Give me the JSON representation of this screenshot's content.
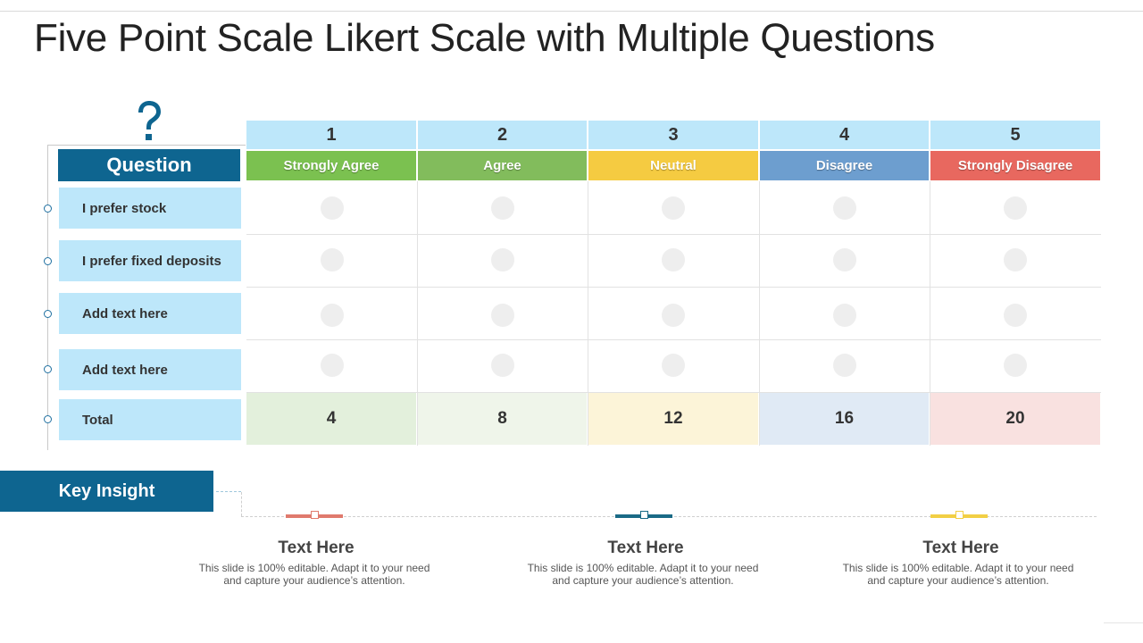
{
  "title": "Five Point Scale Likert Scale with Multiple Questions",
  "question_header": "Question",
  "questions": [
    "I prefer stock",
    "I prefer fixed deposits",
    "Add text here",
    "Add text here",
    "Total"
  ],
  "scale": [
    {
      "number": "1",
      "label": "Strongly Agree",
      "color": "#7bc150",
      "total": "4",
      "total_bg": "#e3f0dc"
    },
    {
      "number": "2",
      "label": "Agree",
      "color": "#82bc5c",
      "total": "8",
      "total_bg": "#eff5ea"
    },
    {
      "number": "3",
      "label": "Neutral",
      "color": "#f5cb41",
      "total": "12",
      "total_bg": "#fcf4d8"
    },
    {
      "number": "4",
      "label": "Disagree",
      "color": "#6d9ecf",
      "total": "16",
      "total_bg": "#e0eaf5"
    },
    {
      "number": "5",
      "label": "Strongly Disagree",
      "color": "#e8685f",
      "total": "20",
      "total_bg": "#f9e1e0"
    }
  ],
  "key_insight": "Key Insight",
  "insights": [
    {
      "title": "Text Here",
      "desc_line1": "This slide is 100% editable. Adapt it to your need",
      "desc_line2": "and capture your audience’s attention.",
      "color": "#e07a6d"
    },
    {
      "title": "Text Here",
      "desc_line1": "This slide is 100% editable. Adapt it to your need",
      "desc_line2": "and capture your audience’s attention.",
      "color": "#1a6a86"
    },
    {
      "title": "Text Here",
      "desc_line1": "This slide is 100% editable. Adapt it to your need",
      "desc_line2": "and capture your audience’s attention.",
      "color": "#f2cf45"
    }
  ],
  "colors": {
    "header_blue": "#0e6590",
    "light_blue": "#bde7fa"
  },
  "icons": {
    "question": "question-mark-icon"
  }
}
